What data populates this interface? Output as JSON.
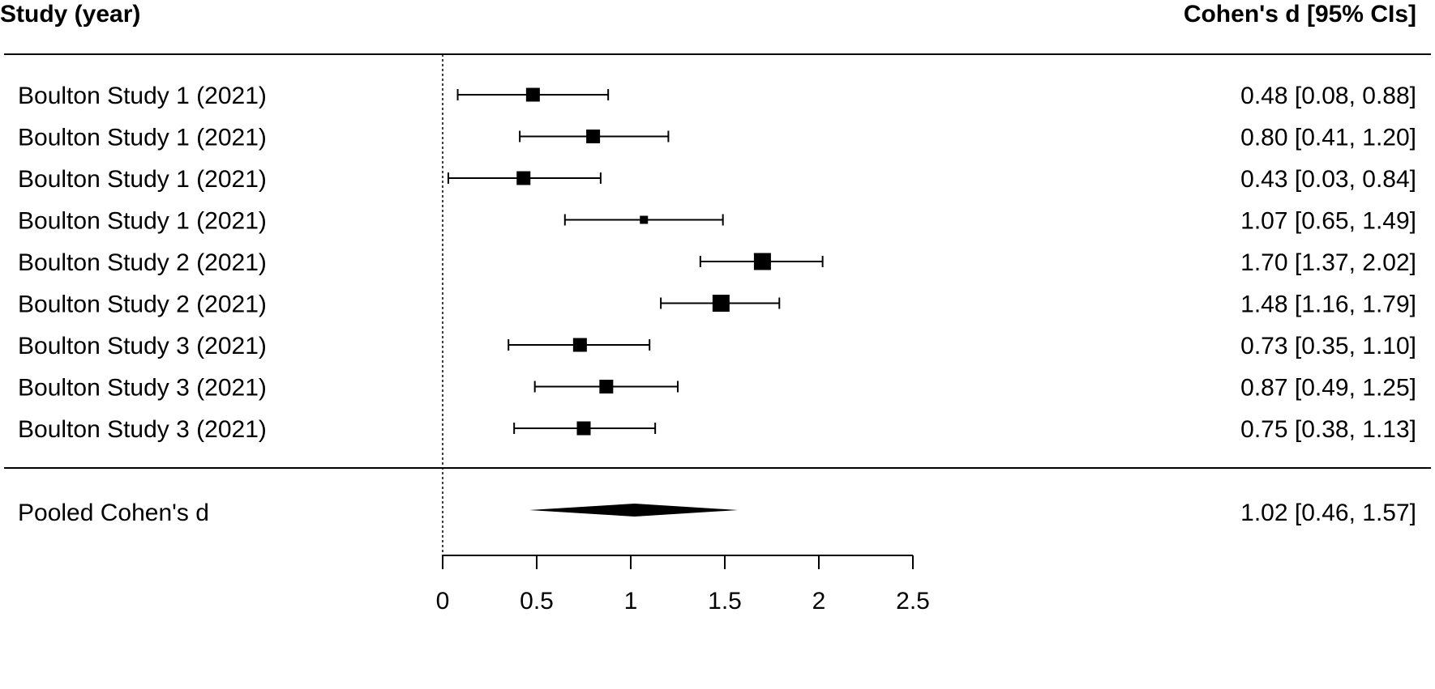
{
  "chart_data": {
    "type": "forest",
    "header_left": "Study (year)",
    "header_right": "Cohen's d [95% CIs]",
    "xticks": [
      0,
      0.5,
      1,
      1.5,
      2,
      2.5
    ],
    "xtick_labels": [
      "0",
      "0.5",
      "1",
      "1.5",
      "2",
      "2.5"
    ],
    "xlim": [
      0,
      2.5
    ],
    "reference_line": 0,
    "studies": [
      {
        "label": "Boulton Study 1 (2021)",
        "estimate": 0.48,
        "lower": 0.08,
        "upper": 0.88,
        "weight": 0.55,
        "text": "0.48 [0.08, 0.88]"
      },
      {
        "label": "Boulton Study 1 (2021)",
        "estimate": 0.8,
        "lower": 0.41,
        "upper": 1.2,
        "weight": 0.55,
        "text": "0.80 [0.41, 1.20]"
      },
      {
        "label": "Boulton Study 1 (2021)",
        "estimate": 0.43,
        "lower": 0.03,
        "upper": 0.84,
        "weight": 0.55,
        "text": "0.43 [0.03, 0.84]"
      },
      {
        "label": "Boulton Study 1 (2021)",
        "estimate": 1.07,
        "lower": 0.65,
        "upper": 1.49,
        "weight": 0.2,
        "text": "1.07 [0.65, 1.49]"
      },
      {
        "label": "Boulton Study 2 (2021)",
        "estimate": 1.7,
        "lower": 1.37,
        "upper": 2.02,
        "weight": 0.75,
        "text": "1.70 [1.37, 2.02]"
      },
      {
        "label": "Boulton Study 2 (2021)",
        "estimate": 1.48,
        "lower": 1.16,
        "upper": 1.79,
        "weight": 0.75,
        "text": "1.48 [1.16, 1.79]"
      },
      {
        "label": "Boulton Study 3 (2021)",
        "estimate": 0.73,
        "lower": 0.35,
        "upper": 1.1,
        "weight": 0.55,
        "text": "0.73 [0.35, 1.10]"
      },
      {
        "label": "Boulton Study 3 (2021)",
        "estimate": 0.87,
        "lower": 0.49,
        "upper": 1.25,
        "weight": 0.55,
        "text": "0.87 [0.49, 1.25]"
      },
      {
        "label": "Boulton Study 3 (2021)",
        "estimate": 0.75,
        "lower": 0.38,
        "upper": 1.13,
        "weight": 0.55,
        "text": "0.75 [0.38, 1.13]"
      }
    ],
    "pooled": {
      "label": "Pooled Cohen's d",
      "estimate": 1.02,
      "lower": 0.46,
      "upper": 1.57,
      "text": "1.02 [0.46, 1.57]"
    }
  }
}
